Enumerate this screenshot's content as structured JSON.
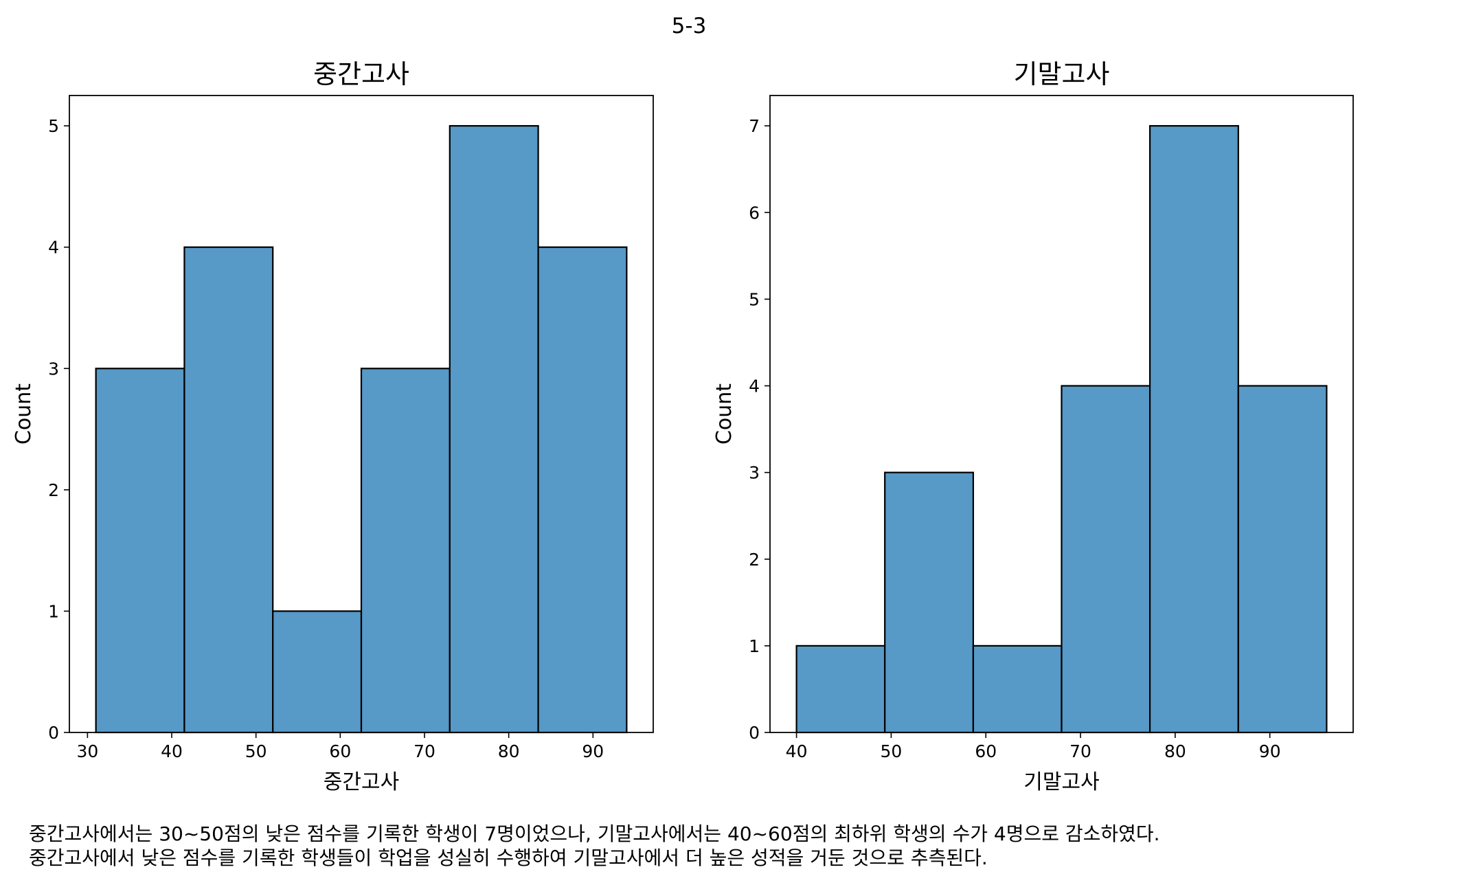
{
  "figure": {
    "suptitle": "5-3",
    "caption": [
      "중간고사에서는 30~50점의 낮은 점수를 기록한 학생이 7명이었으나, 기말고사에서는 40~60점의 최하위 학생의 수가 4명으로 감소하였다.",
      "중간고사에서 낮은 점수를 기록한 학생들이 학업을 성실히 수행하여 기말고사에서 더 높은 성적을 거둔 것으로 추측된다."
    ]
  },
  "chart_data": [
    {
      "type": "bar",
      "title": "중간고사",
      "xlabel": "중간고사",
      "ylabel": "Count",
      "bin_edges": [
        31,
        41.5,
        52,
        62.5,
        73,
        83.5,
        94
      ],
      "values": [
        3,
        4,
        1,
        3,
        5,
        4
      ],
      "xlim": [
        27.85,
        97.15
      ],
      "ylim": [
        0,
        5.25
      ],
      "xticks": [
        30,
        40,
        50,
        60,
        70,
        80,
        90
      ],
      "yticks": [
        0,
        1,
        2,
        3,
        4,
        5
      ],
      "bar_color": "#5799c7",
      "grid": false
    },
    {
      "type": "bar",
      "title": "기말고사",
      "xlabel": "기말고사",
      "ylabel": "Count",
      "bin_edges": [
        40,
        49.33,
        58.67,
        68,
        77.33,
        86.67,
        96
      ],
      "values": [
        1,
        3,
        1,
        4,
        7,
        4
      ],
      "xlim": [
        37.2,
        98.8
      ],
      "ylim": [
        0,
        7.35
      ],
      "xticks": [
        40,
        50,
        60,
        70,
        80,
        90
      ],
      "yticks": [
        0,
        1,
        2,
        3,
        4,
        5,
        6,
        7
      ],
      "bar_color": "#5799c7",
      "grid": false
    }
  ]
}
